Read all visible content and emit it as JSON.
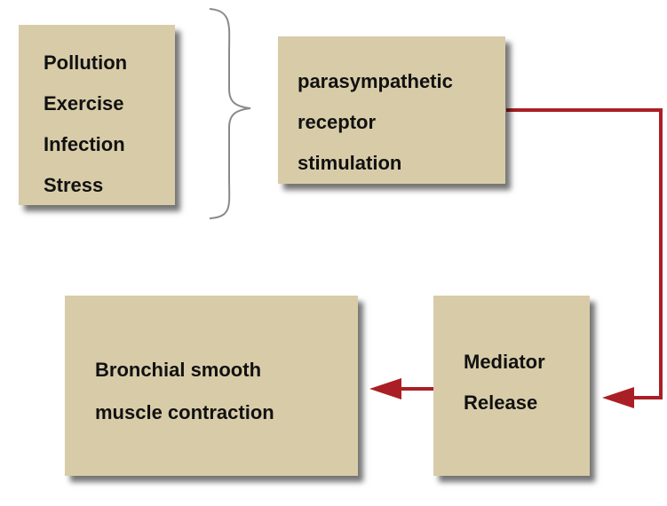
{
  "triggers": {
    "items": [
      "Pollution",
      "Exercise",
      "Infection",
      "Stress"
    ]
  },
  "receptor": {
    "lines": [
      "parasympathetic",
      "receptor",
      "stimulation"
    ]
  },
  "mediator": {
    "lines": [
      "Mediator",
      "Release"
    ]
  },
  "contraction": {
    "lines": [
      "Bronchial smooth",
      "muscle contraction"
    ]
  },
  "colors": {
    "box_fill": "#d8cca8",
    "arrow": "#aa1f25",
    "brace": "#8a8a8a",
    "text": "#111111"
  }
}
